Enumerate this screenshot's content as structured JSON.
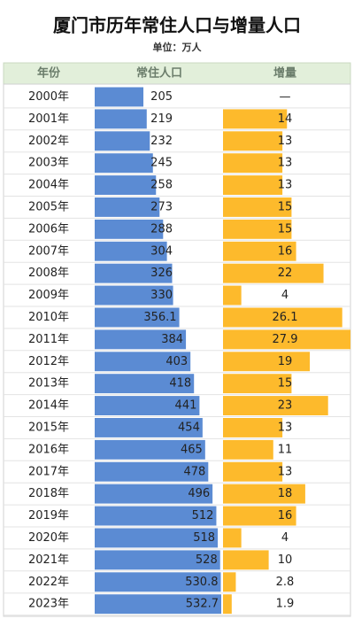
{
  "chart_data": {
    "type": "bar",
    "title": "厦门市历年常住人口与增量人口",
    "subtitle": "单位：万人",
    "columns": [
      "年份",
      "常住人口",
      "增量"
    ],
    "categories": [
      "2000年",
      "2001年",
      "2002年",
      "2003年",
      "2004年",
      "2005年",
      "2006年",
      "2007年",
      "2008年",
      "2009年",
      "2010年",
      "2011年",
      "2012年",
      "2013年",
      "2014年",
      "2015年",
      "2016年",
      "2017年",
      "2018年",
      "2019年",
      "2020年",
      "2021年",
      "2022年",
      "2023年"
    ],
    "series": [
      {
        "name": "常住人口",
        "color": "#5b8bd3",
        "values": [
          205,
          219,
          232,
          245,
          258,
          273,
          288,
          304,
          326,
          330,
          356.1,
          384,
          403,
          418,
          441,
          454,
          465,
          478,
          496,
          512,
          518,
          528,
          530.8,
          532.7
        ]
      },
      {
        "name": "增量",
        "color": "#fdba2c",
        "values": [
          null,
          14,
          13,
          13,
          13,
          15,
          15,
          16,
          22,
          4,
          26.1,
          27.9,
          19,
          15,
          23,
          13,
          11,
          13,
          18,
          16,
          4,
          10,
          2.8,
          1.9
        ],
        "value_labels": [
          "—",
          "14",
          "13",
          "13",
          "13",
          "15",
          "15",
          "16",
          "22",
          "4",
          "26.1",
          "27.9",
          "19",
          "15",
          "23",
          "13",
          "11",
          "13",
          "18",
          "16",
          "4",
          "10",
          "2.8",
          "1.9"
        ]
      }
    ]
  }
}
